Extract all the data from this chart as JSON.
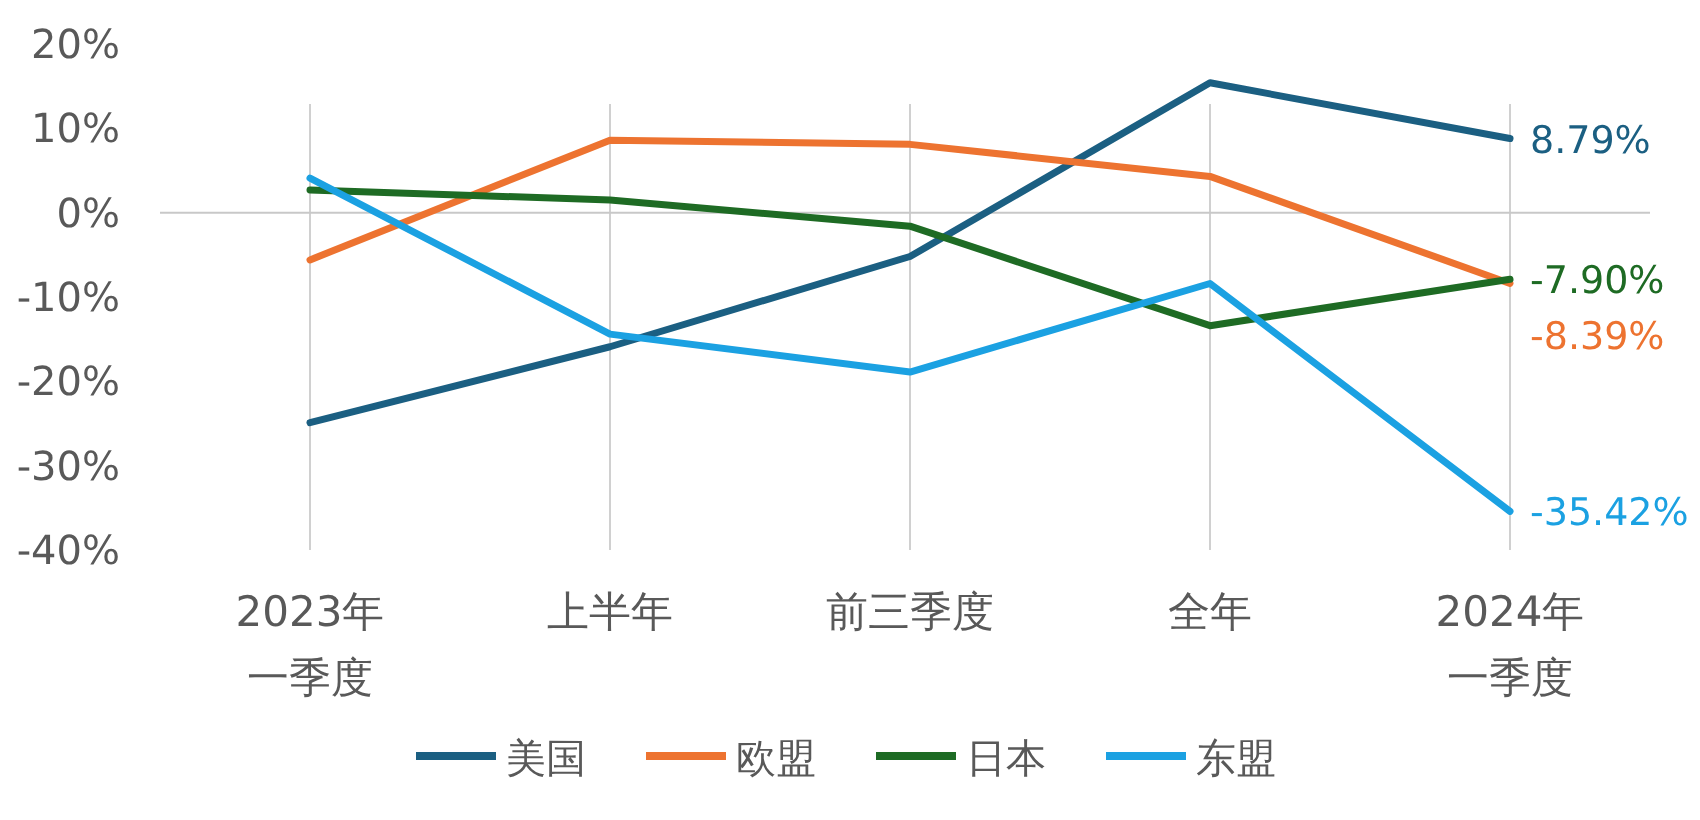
{
  "chart_data": {
    "type": "line",
    "categories": [
      "2023年一季度",
      "上半年",
      "前三季度",
      "全年",
      "2024年一季度"
    ],
    "series": [
      {
        "name": "美国",
        "color": "#1b5f82",
        "values": [
          -24.9,
          -15.9,
          -5.2,
          15.4,
          8.79
        ],
        "value_labels": [
          null,
          null,
          null,
          null,
          "8.79%"
        ]
      },
      {
        "name": "欧盟",
        "color": "#ed7330",
        "values": [
          -5.6,
          8.6,
          8.1,
          4.3,
          -8.39
        ],
        "value_labels": [
          null,
          null,
          null,
          null,
          "-8.39%"
        ]
      },
      {
        "name": "日本",
        "color": "#1e6b24",
        "values": [
          2.7,
          1.5,
          -1.6,
          -13.4,
          -7.9
        ],
        "value_labels": [
          null,
          null,
          null,
          null,
          "-7.90%"
        ]
      },
      {
        "name": "东盟",
        "color": "#1ba1e2",
        "values": [
          4.1,
          -14.4,
          -18.9,
          -8.4,
          -35.42
        ],
        "value_labels": [
          null,
          null,
          null,
          null,
          "-35.42%"
        ]
      }
    ],
    "ylim": [
      -40,
      20
    ],
    "yticks": [
      {
        "value": 20,
        "label": "20%"
      },
      {
        "value": 10,
        "label": "10%"
      },
      {
        "value": 0,
        "label": "0%"
      },
      {
        "value": -10,
        "label": "-10%"
      },
      {
        "value": -20,
        "label": "-20%"
      },
      {
        "value": -30,
        "label": "-30%"
      },
      {
        "value": -40,
        "label": "-40%"
      }
    ],
    "grid": "x",
    "legend": "bottom"
  }
}
